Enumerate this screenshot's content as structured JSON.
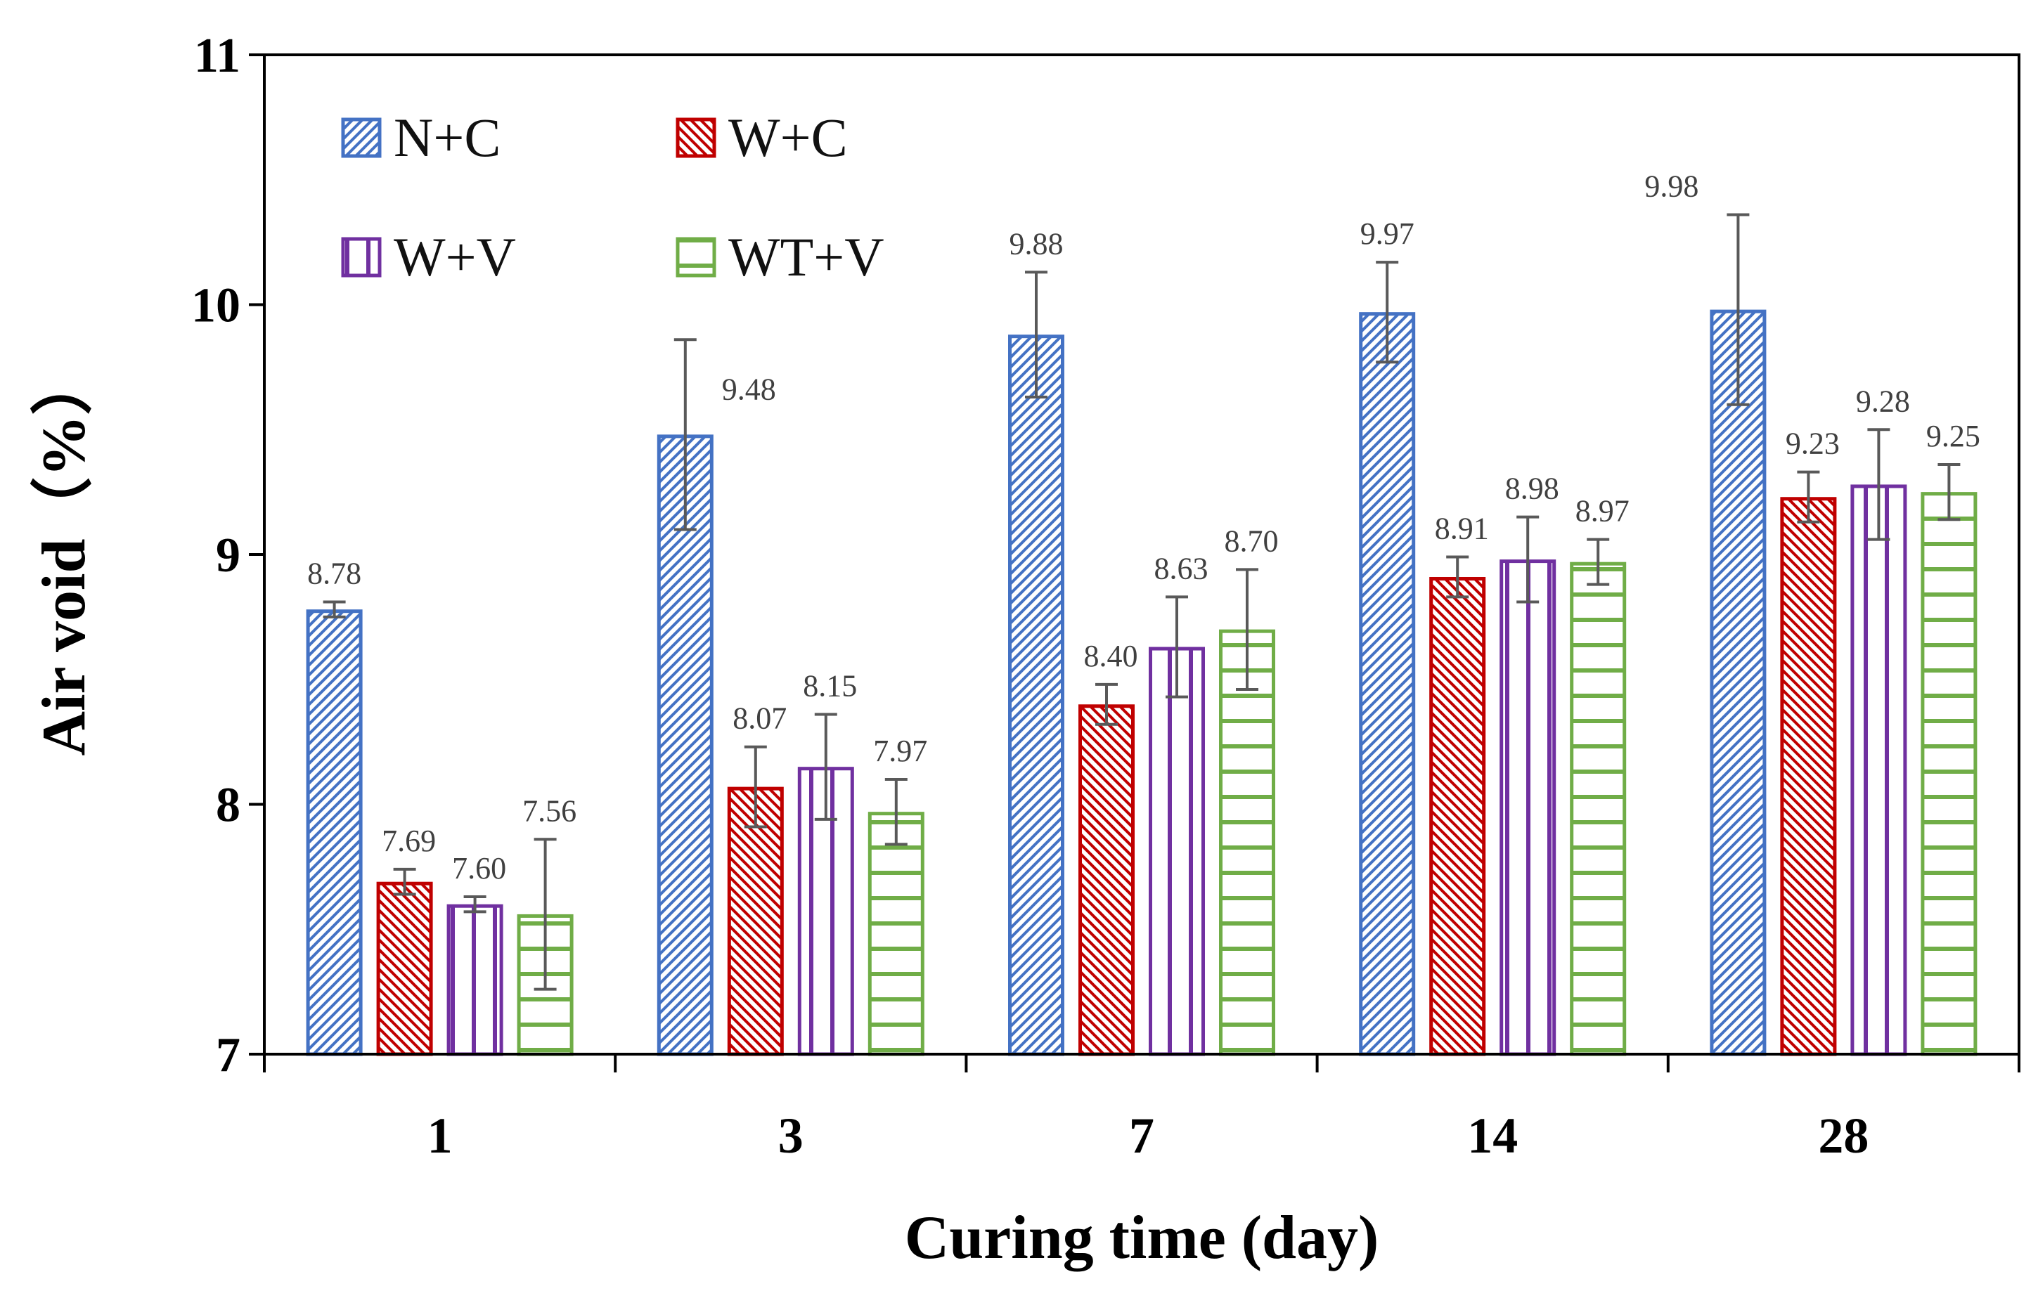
{
  "chart_data": {
    "type": "bar",
    "title": "",
    "xlabel": "Curing time (day)",
    "ylabel": "Air void（%）",
    "ylim": [
      7,
      11
    ],
    "yticks": [
      "7",
      "8",
      "9",
      "10",
      "11"
    ],
    "categories": [
      "1",
      "3",
      "7",
      "14",
      "28"
    ],
    "grid": false,
    "legend_position": "top-left",
    "series": [
      {
        "name": "N+C",
        "color": "#4472C4",
        "pattern": "diagonal-up",
        "values": [
          8.78,
          9.48,
          9.88,
          9.97,
          9.98
        ],
        "labels": [
          "8.78",
          "9.48",
          "9.88",
          "9.97",
          "9.98"
        ],
        "errors": [
          0.03,
          0.38,
          0.25,
          0.2,
          0.38
        ]
      },
      {
        "name": "W+C",
        "color": "#C00000",
        "pattern": "diagonal-down",
        "values": [
          7.69,
          8.07,
          8.4,
          8.91,
          9.23
        ],
        "labels": [
          "7.69",
          "8.07",
          "8.40",
          "8.91",
          "9.23"
        ],
        "errors": [
          0.05,
          0.16,
          0.08,
          0.08,
          0.1
        ]
      },
      {
        "name": "W+V",
        "color": "#7030A0",
        "pattern": "vertical",
        "values": [
          7.6,
          8.15,
          8.63,
          8.98,
          9.28
        ],
        "labels": [
          "7.60",
          "8.15",
          "8.63",
          "8.98",
          "9.28"
        ],
        "errors": [
          0.03,
          0.21,
          0.2,
          0.17,
          0.22
        ]
      },
      {
        "name": "WT+V",
        "color": "#70AD47",
        "pattern": "horizontal",
        "values": [
          7.56,
          7.97,
          8.7,
          8.97,
          9.25
        ],
        "labels": [
          "7.56",
          "7.97",
          "8.70",
          "8.97",
          "9.25"
        ],
        "errors": [
          0.3,
          0.13,
          0.24,
          0.09,
          0.11
        ]
      }
    ]
  }
}
